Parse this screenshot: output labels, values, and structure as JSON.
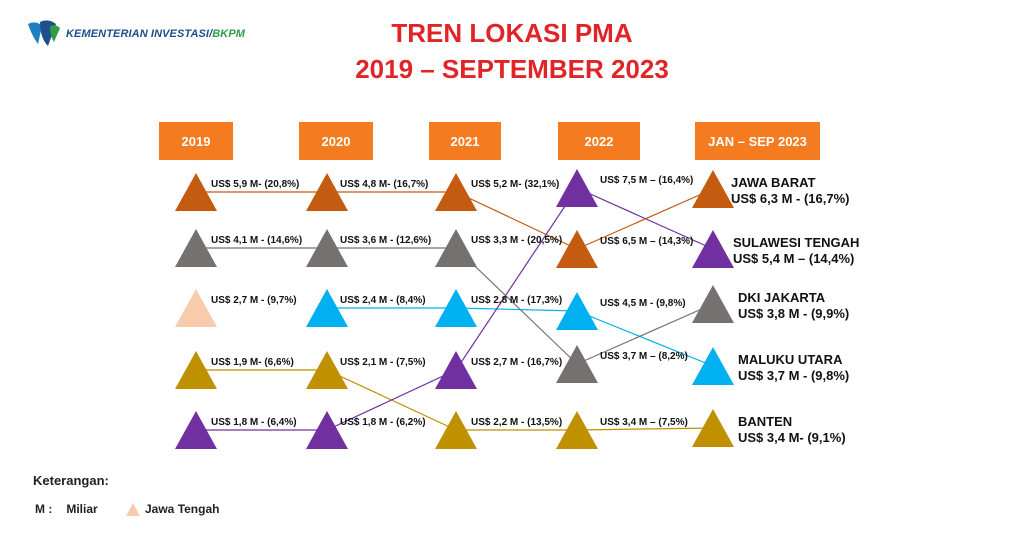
{
  "header": {
    "logo_text": "KEMENTERIAN INVESTASI/",
    "logo_accent": "BKPM",
    "title_line1": "TREN LOKASI PMA",
    "title_line2": "2019 – SEPTEMBER 2023"
  },
  "columns": [
    "2019",
    "2020",
    "2021",
    "2022",
    "JAN – SEP 2023"
  ],
  "colors": {
    "jawa_barat": "#c55a11",
    "banten": "#bf9000",
    "dki_jakarta": "#767171",
    "sulawesi_tengah": "#7030a0",
    "maluku_utara": "#00b0f0",
    "jawa_tengah": "#f8cbad",
    "year_box": "#f47b20",
    "title": "#e02427"
  },
  "ranks": {
    "2019": [
      {
        "province": "jawa_barat",
        "label": "US$ 5,9 M- (20,8%)"
      },
      {
        "province": "dki_jakarta",
        "label": "US$ 4,1 M - (14,6%)"
      },
      {
        "province": "jawa_tengah",
        "label": "US$ 2,7 M - (9,7%)"
      },
      {
        "province": "banten",
        "label": "US$ 1,9 M- (6,6%)"
      },
      {
        "province": "sulawesi_tengah",
        "label": "US$ 1,8 M - (6,4%)"
      }
    ],
    "2020": [
      {
        "province": "jawa_barat",
        "label": "US$ 4,8 M- (16,7%)"
      },
      {
        "province": "dki_jakarta",
        "label": "US$ 3,6 M - (12,6%)"
      },
      {
        "province": "maluku_utara",
        "label": "US$ 2,4 M - (8,4%)"
      },
      {
        "province": "banten",
        "label": "US$ 2,1 M - (7,5%)"
      },
      {
        "province": "sulawesi_tengah",
        "label": "US$ 1,8 M - (6,2%)"
      }
    ],
    "2021": [
      {
        "province": "jawa_barat",
        "label": "US$ 5,2 M- (32,1%)"
      },
      {
        "province": "dki_jakarta",
        "label": "US$ 3,3 M - (20,5%)"
      },
      {
        "province": "maluku_utara",
        "label": "US$ 2,8 M - (17,3%)"
      },
      {
        "province": "sulawesi_tengah",
        "label": "US$ 2,7 M - (16,7%)"
      },
      {
        "province": "banten",
        "label": "US$ 2,2 M - (13,5%)"
      }
    ],
    "2022": [
      {
        "province": "sulawesi_tengah",
        "label": "US$ 7,5 M – (16,4%)"
      },
      {
        "province": "jawa_barat",
        "label": "US$ 6,5 M – (14,3%)"
      },
      {
        "province": "maluku_utara",
        "label": "US$ 4,5 M - (9,8%)"
      },
      {
        "province": "dki_jakarta",
        "label": "US$ 3,7 M – (8,2%)"
      },
      {
        "province": "banten",
        "label": "US$ 3,4 M – (7,5%)"
      }
    ],
    "2023": [
      {
        "province": "jawa_barat",
        "name": "JAWA BARAT",
        "label": "US$ 6,3 M - (16,7%)"
      },
      {
        "province": "sulawesi_tengah",
        "name": "SULAWESI TENGAH",
        "label": "US$ 5,4 M – (14,4%)"
      },
      {
        "province": "dki_jakarta",
        "name": "DKI JAKARTA",
        "label": "US$ 3,8 M - (9,9%)"
      },
      {
        "province": "maluku_utara",
        "name": "MALUKU UTARA",
        "label": "US$ 3,7 M - (9,8%)"
      },
      {
        "province": "banten",
        "name": "BANTEN",
        "label": "US$ 3,4 M- (9,1%)"
      }
    ]
  },
  "legend": {
    "title": "Keterangan:",
    "m_key": "M :",
    "m_value": "Miliar",
    "jt_label": "Jawa Tengah"
  }
}
